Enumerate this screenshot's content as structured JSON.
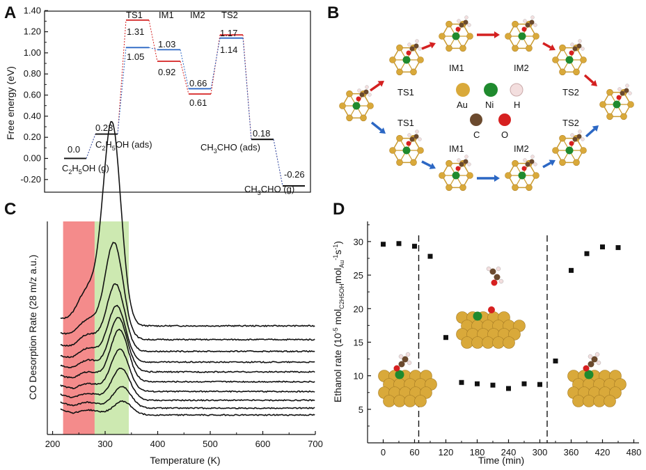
{
  "panels": {
    "A": "A",
    "B": "B",
    "C": "C",
    "D": "D"
  },
  "colors": {
    "red": "#d42020",
    "blue": "#2b67c4",
    "dark": "#111111",
    "au": "#d9a93a",
    "ni": "#1f8a2e",
    "o": "#d62020",
    "c": "#6b4a2e",
    "h": "#f3dede",
    "red_band": "#f48b8b",
    "green_band": "#cde9b1"
  },
  "chart_data": [
    {
      "id": "A",
      "type": "line",
      "title": "",
      "ylabel": "Free energy (eV)",
      "ylim": [
        -0.3,
        1.42
      ],
      "yticks": [
        "-0.20",
        "0.00",
        "0.20",
        "0.40",
        "0.60",
        "0.80",
        "1.00",
        "1.20",
        "1.40"
      ],
      "ytick_values": [
        -0.2,
        0.0,
        0.2,
        0.4,
        0.6,
        0.8,
        1.0,
        1.2,
        1.4
      ],
      "states": [
        "C2H5OH (g)",
        "C2H5OH (ads)",
        "TS1",
        "IM1",
        "IM2",
        "TS2",
        "CH3CHO (ads)",
        "CH3CHO (g)"
      ],
      "series": [
        {
          "name": "",
          "color": "red",
          "values": [
            0.0,
            0.23,
            1.31,
            0.92,
            0.61,
            1.17,
            0.18,
            -0.26
          ]
        },
        {
          "name": "",
          "color": "blue",
          "values": [
            0.0,
            0.23,
            1.05,
            1.03,
            0.66,
            1.14,
            0.18,
            -0.26
          ]
        }
      ],
      "value_labels": [
        {
          "text": "0.0"
        },
        {
          "text": "0.23"
        },
        {
          "text": "1.31"
        },
        {
          "text": "1.05"
        },
        {
          "text": "1.03"
        },
        {
          "text": "0.92"
        },
        {
          "text": "0.66"
        },
        {
          "text": "0.61"
        },
        {
          "text": "1.17"
        },
        {
          "text": "1.14"
        },
        {
          "text": "0.18"
        },
        {
          "text": "-0.26"
        }
      ],
      "state_labels": {
        "g_start": {
          "base": "C",
          "sub1": "2",
          "mid": "H",
          "sub2": "5",
          "end": "OH (g)"
        },
        "ads_start": {
          "base": "C",
          "sub1": "2",
          "mid": "H",
          "sub2": "5",
          "end": "OH (ads)"
        },
        "TS1": "TS1",
        "IM1": "IM1",
        "IM2": "IM2",
        "TS2": "TS2",
        "ads_end": {
          "base": "CH",
          "sub1": "3",
          "end": "CHO (ads)"
        },
        "g_end": {
          "base": "CH",
          "sub1": "3",
          "end": "CHO (g)"
        }
      }
    },
    {
      "id": "C",
      "type": "line",
      "xlabel": "Temperature (K)",
      "ylabel": "CO Desorption Rate (28 m/z a.u.)",
      "xlim": [
        190,
        700
      ],
      "xticks": [
        200,
        300,
        400,
        500,
        600,
        700
      ],
      "bands": [
        {
          "from": 220,
          "to": 280,
          "color": "red_band"
        },
        {
          "from": 280,
          "to": 345,
          "color": "green_band"
        }
      ],
      "series": [
        {
          "name": "",
          "baseline": 0.94,
          "low_peak": 0.37,
          "peak_T": 313,
          "peak_h": 2.05
        },
        {
          "name": "",
          "baseline": 0.8,
          "low_peak": 0.2,
          "peak_T": 317,
          "peak_h": 0.98
        },
        {
          "name": "",
          "baseline": 0.68,
          "low_peak": 0.17,
          "peak_T": 320,
          "peak_h": 0.68
        },
        {
          "name": "",
          "baseline": 0.57,
          "low_peak": 0.14,
          "peak_T": 322,
          "peak_h": 0.57
        },
        {
          "name": "",
          "baseline": 0.47,
          "low_peak": 0.12,
          "peak_T": 325,
          "peak_h": 0.55
        },
        {
          "name": "",
          "baseline": 0.37,
          "low_peak": 0.1,
          "peak_T": 327,
          "peak_h": 0.53
        },
        {
          "name": "",
          "baseline": 0.27,
          "low_peak": 0.08,
          "peak_T": 328,
          "peak_h": 0.43
        },
        {
          "name": "",
          "baseline": 0.18,
          "low_peak": 0.07,
          "peak_T": 330,
          "peak_h": 0.33
        },
        {
          "name": "",
          "baseline": 0.1,
          "low_peak": 0.06,
          "peak_T": 332,
          "peak_h": 0.22
        },
        {
          "name": "",
          "baseline": 0.03,
          "low_peak": 0.05,
          "peak_T": 333,
          "peak_h": 0.14
        }
      ]
    },
    {
      "id": "D",
      "type": "scatter",
      "xlabel": "Time (min)",
      "ylabel_parts": {
        "a": "Ethanol rate (10",
        "sup1": "-5",
        "b": " mol",
        "sub1": "C2H5OH",
        "c": "mol",
        "sub2": "Au",
        "sup2": "-1",
        "d": "s",
        "sup3": "-1",
        "e": ")"
      },
      "xlim": [
        -30,
        490
      ],
      "ylim": [
        0,
        33
      ],
      "xticks": [
        0,
        60,
        120,
        180,
        240,
        300,
        360,
        420,
        480
      ],
      "yticks": [
        5,
        10,
        15,
        20,
        25,
        30
      ],
      "vlines": [
        68,
        314
      ],
      "series": [
        {
          "name": "",
          "x": [
            0,
            30,
            60,
            90,
            120,
            150,
            180,
            210,
            240,
            270,
            300,
            330,
            360,
            390,
            420,
            450
          ],
          "y": [
            29.6,
            29.7,
            29.3,
            27.8,
            15.7,
            9.0,
            8.8,
            8.6,
            8.1,
            8.8,
            8.7,
            12.2,
            25.7,
            28.2,
            29.2,
            29.1
          ]
        }
      ]
    }
  ],
  "scheme": {
    "labels": {
      "TS1_top": "TS1",
      "IM1_top": "IM1",
      "IM2_top": "IM2",
      "TS2_top": "TS2",
      "TS1_bot": "TS1",
      "IM1_bot": "IM1",
      "IM2_bot": "IM2",
      "TS2_bot": "TS2"
    },
    "legend": [
      {
        "label": "Au",
        "color": "au"
      },
      {
        "label": "Ni",
        "color": "ni"
      },
      {
        "label": "H",
        "color": "h"
      },
      {
        "label": "C",
        "color": "c"
      },
      {
        "label": "O",
        "color": "o"
      }
    ]
  }
}
